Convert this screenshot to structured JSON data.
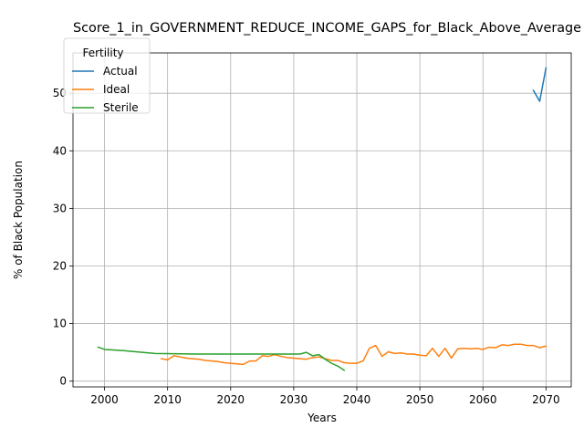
{
  "chart_data": {
    "type": "line",
    "title": "Score_1_in_GOVERNMENT_REDUCE_INCOME_GAPS_for_Black_Above_Average",
    "xlabel": "Years",
    "ylabel": "% of Black Population",
    "xlim": [
      1995,
      2074
    ],
    "ylim": [
      -1,
      57
    ],
    "xticks": [
      2000,
      2010,
      2020,
      2030,
      2040,
      2050,
      2060,
      2070
    ],
    "yticks": [
      0,
      10,
      20,
      30,
      40,
      50
    ],
    "grid": true,
    "legend": {
      "title": "Fertility",
      "placement": "upper left"
    },
    "series": [
      {
        "name": "Actual",
        "color": "#1f77b4",
        "x": [
          2068,
          2069,
          2070
        ],
        "y": [
          50.5,
          48.6,
          54.4
        ]
      },
      {
        "name": "Ideal",
        "color": "#ff7f0e",
        "x": [
          2009,
          2010,
          2011,
          2012,
          2013,
          2014,
          2015,
          2016,
          2017,
          2018,
          2019,
          2020,
          2021,
          2022,
          2023,
          2024,
          2025,
          2026,
          2027,
          2028,
          2029,
          2030,
          2031,
          2032,
          2033,
          2034,
          2035,
          2036,
          2037,
          2038,
          2039,
          2040,
          2041,
          2042,
          2043,
          2044,
          2045,
          2046,
          2047,
          2048,
          2049,
          2050,
          2051,
          2052,
          2053,
          2054,
          2055,
          2056,
          2057,
          2058,
          2059,
          2060,
          2061,
          2062,
          2063,
          2064,
          2065,
          2066,
          2067,
          2068,
          2069,
          2070
        ],
        "y": [
          3.9,
          3.7,
          4.4,
          4.2,
          4.0,
          3.9,
          3.8,
          3.6,
          3.5,
          3.4,
          3.2,
          3.1,
          3.0,
          2.9,
          3.5,
          3.5,
          4.4,
          4.3,
          4.6,
          4.3,
          4.1,
          4.0,
          3.9,
          3.8,
          4.1,
          4.2,
          3.9,
          3.6,
          3.6,
          3.2,
          3.1,
          3.1,
          3.5,
          5.7,
          6.2,
          4.3,
          5.1,
          4.8,
          4.9,
          4.7,
          4.7,
          4.5,
          4.4,
          5.7,
          4.3,
          5.7,
          4.0,
          5.6,
          5.7,
          5.6,
          5.7,
          5.5,
          5.9,
          5.8,
          6.3,
          6.2,
          6.4,
          6.4,
          6.2,
          6.2,
          5.8,
          6.1
        ]
      },
      {
        "name": "Sterile",
        "color": "#2ca02c",
        "x": [
          1999,
          2000,
          2003,
          2005,
          2008,
          2015,
          2020,
          2025,
          2031,
          2032,
          2033,
          2034,
          2035,
          2036,
          2037,
          2038
        ],
        "y": [
          5.9,
          5.5,
          5.3,
          5.1,
          4.8,
          4.7,
          4.7,
          4.7,
          4.7,
          5.0,
          4.4,
          4.6,
          3.8,
          3.1,
          2.6,
          1.9
        ]
      }
    ]
  }
}
